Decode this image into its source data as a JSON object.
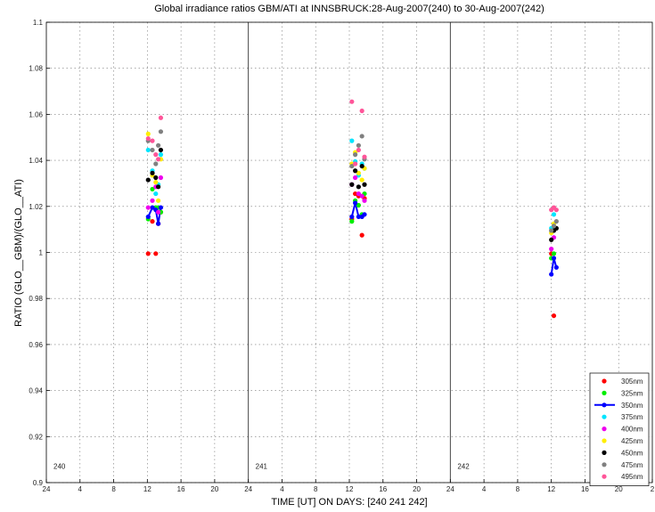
{
  "chart_data": {
    "type": "scatter",
    "title": "Global irradiance ratios GBM/ATI at INNSBRUCK:28-Aug-2007(240) to 30-Aug-2007(242)",
    "xlabel": "TIME [UT]  ON  DAYS: [240  241  242]",
    "ylabel": "RATIO  (GLO__GBM)/(GLO__ATI)",
    "ylim": [
      0.9,
      1.1
    ],
    "yticks": [
      "0.9",
      "0.92",
      "0.94",
      "0.96",
      "0.98",
      "1",
      "1.02",
      "1.04",
      "1.06",
      "1.08",
      "1.1"
    ],
    "xlim_hours": [
      24,
      96
    ],
    "xtick_labels": [
      "24",
      "4",
      "8",
      "12",
      "16",
      "20",
      "24",
      "4",
      "8",
      "12",
      "16",
      "20",
      "24",
      "4",
      "8",
      "12",
      "16",
      "20",
      "2"
    ],
    "day_labels": [
      {
        "day": "240",
        "start_hour": 24
      },
      {
        "day": "241",
        "start_hour": 48
      },
      {
        "day": "242",
        "start_hour": 72
      }
    ],
    "grid": true,
    "legend_position": "bottom-right",
    "series": [
      {
        "name": "305nm",
        "color": "#ff0000",
        "line": false,
        "points": [
          [
            36.1,
            0.9995
          ],
          [
            36.6,
            1.0135
          ],
          [
            37.0,
            0.9995
          ],
          [
            37.3,
            1.0125
          ],
          [
            37.6,
            1.0175
          ],
          [
            60.3,
            1.0145
          ],
          [
            60.7,
            1.0255
          ],
          [
            61.1,
            1.0245
          ],
          [
            61.5,
            1.0075
          ],
          [
            61.8,
            1.0235
          ],
          [
            84.0,
            0.9995
          ],
          [
            84.3,
            0.9725
          ]
        ]
      },
      {
        "name": "325nm",
        "color": "#00ee00",
        "line": false,
        "points": [
          [
            36.1,
            1.0145
          ],
          [
            36.6,
            1.0275
          ],
          [
            37.0,
            1.0195
          ],
          [
            37.3,
            1.0195
          ],
          [
            37.6,
            1.0175
          ],
          [
            60.3,
            1.0135
          ],
          [
            60.7,
            1.0225
          ],
          [
            61.1,
            1.0205
          ],
          [
            61.5,
            1.0165
          ],
          [
            61.8,
            1.0255
          ],
          [
            84.0,
            0.9975
          ],
          [
            84.3,
            0.9995
          ]
        ]
      },
      {
        "name": "350nm",
        "color": "#0000ff",
        "line": true,
        "points": [
          [
            36.1,
            1.0155
          ],
          [
            36.6,
            1.0195
          ],
          [
            37.0,
            1.0185
          ],
          [
            37.3,
            1.0125
          ],
          [
            37.6,
            1.0195
          ],
          [
            60.3,
            1.0155
          ],
          [
            60.7,
            1.0215
          ],
          [
            61.1,
            1.0155
          ],
          [
            61.5,
            1.0155
          ],
          [
            61.8,
            1.0165
          ],
          [
            84.0,
            0.9905
          ],
          [
            84.3,
            0.9975
          ],
          [
            84.6,
            0.9935
          ]
        ]
      },
      {
        "name": "375nm",
        "color": "#00e5ff",
        "line": false,
        "points": [
          [
            36.1,
            1.0445
          ],
          [
            36.6,
            1.0355
          ],
          [
            37.0,
            1.0255
          ],
          [
            37.3,
            1.0295
          ],
          [
            37.6,
            1.0425
          ],
          [
            60.3,
            1.0485
          ],
          [
            60.7,
            1.0395
          ],
          [
            61.1,
            1.0335
          ],
          [
            61.5,
            1.0385
          ],
          [
            61.8,
            1.0365
          ],
          [
            84.0,
            1.0105
          ],
          [
            84.3,
            1.0165
          ]
        ]
      },
      {
        "name": "400nm",
        "color": "#ee00ee",
        "line": false,
        "points": [
          [
            36.1,
            1.0195
          ],
          [
            36.6,
            1.0225
          ],
          [
            37.0,
            1.0285
          ],
          [
            37.3,
            1.0175
          ],
          [
            37.6,
            1.0325
          ],
          [
            60.3,
            1.0295
          ],
          [
            60.7,
            1.0325
          ],
          [
            61.1,
            1.0255
          ],
          [
            61.5,
            1.0245
          ],
          [
            61.8,
            1.0225
          ],
          [
            84.0,
            1.0015
          ],
          [
            84.3,
            1.0065
          ]
        ]
      },
      {
        "name": "425nm",
        "color": "#ffee00",
        "line": false,
        "points": [
          [
            36.1,
            1.0515
          ],
          [
            36.6,
            1.0335
          ],
          [
            37.0,
            1.0305
          ],
          [
            37.3,
            1.0225
          ],
          [
            37.6,
            1.0405
          ],
          [
            60.3,
            1.0385
          ],
          [
            60.7,
            1.0435
          ],
          [
            61.1,
            1.0345
          ],
          [
            61.5,
            1.0315
          ],
          [
            61.8,
            1.0365
          ],
          [
            84.0,
            1.0085
          ],
          [
            84.3,
            1.0125
          ]
        ]
      },
      {
        "name": "450nm",
        "color": "#000000",
        "line": false,
        "points": [
          [
            36.1,
            1.0315
          ],
          [
            36.6,
            1.0345
          ],
          [
            37.0,
            1.0325
          ],
          [
            37.3,
            1.0285
          ],
          [
            37.6,
            1.0445
          ],
          [
            60.3,
            1.0295
          ],
          [
            60.7,
            1.0355
          ],
          [
            61.1,
            1.0285
          ],
          [
            61.5,
            1.0375
          ],
          [
            61.8,
            1.0295
          ],
          [
            84.0,
            1.0055
          ],
          [
            84.3,
            1.0095
          ],
          [
            84.6,
            1.0105
          ]
        ]
      },
      {
        "name": "475nm",
        "color": "#808080",
        "line": false,
        "points": [
          [
            36.1,
            1.0485
          ],
          [
            36.6,
            1.0445
          ],
          [
            37.0,
            1.0385
          ],
          [
            37.3,
            1.0465
          ],
          [
            37.6,
            1.0525
          ],
          [
            60.3,
            1.0375
          ],
          [
            60.7,
            1.0425
          ],
          [
            61.1,
            1.0465
          ],
          [
            61.5,
            1.0505
          ],
          [
            61.8,
            1.0405
          ],
          [
            84.0,
            1.0095
          ],
          [
            84.3,
            1.0115
          ],
          [
            84.6,
            1.0135
          ]
        ]
      },
      {
        "name": "495nm",
        "color": "#ff5599",
        "line": false,
        "points": [
          [
            36.1,
            1.0495
          ],
          [
            36.6,
            1.0485
          ],
          [
            37.0,
            1.0425
          ],
          [
            37.3,
            1.0405
          ],
          [
            37.6,
            1.0585
          ],
          [
            60.3,
            1.0655
          ],
          [
            60.7,
            1.0385
          ],
          [
            61.1,
            1.0445
          ],
          [
            61.5,
            1.0615
          ],
          [
            61.8,
            1.0415
          ],
          [
            84.0,
            1.0185
          ],
          [
            84.3,
            1.0195
          ],
          [
            84.6,
            1.0185
          ]
        ]
      }
    ]
  }
}
